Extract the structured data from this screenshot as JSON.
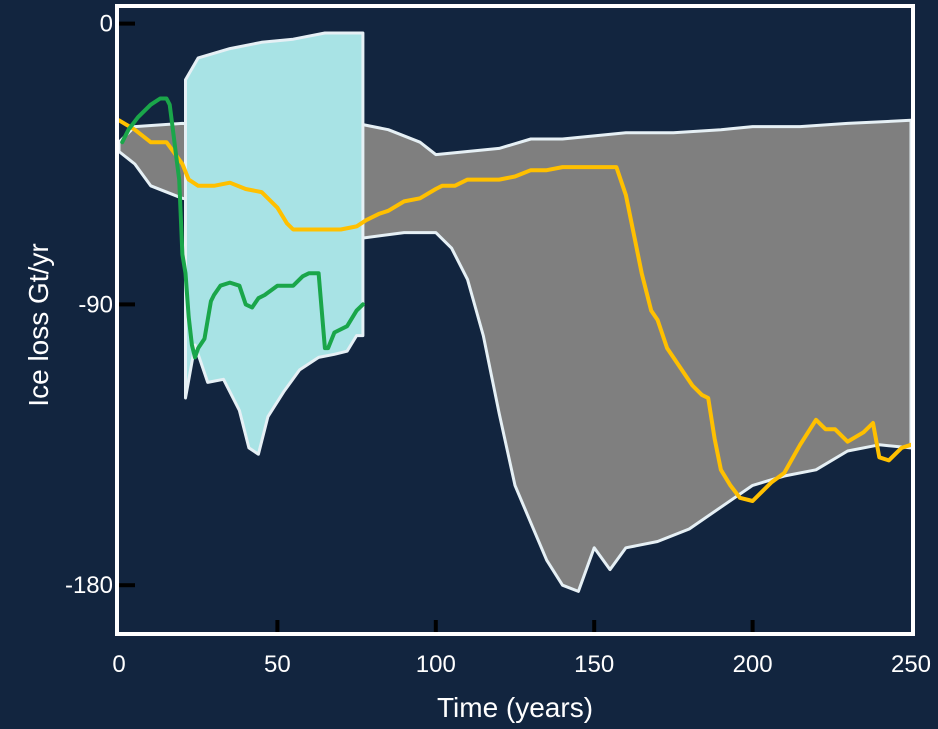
{
  "chart_data": {
    "type": "area",
    "xlabel": "Time (years)",
    "ylabel": "Ice loss Gt/yr",
    "xlim": [
      0,
      250
    ],
    "ylim": [
      -195,
      5
    ],
    "x_ticks": [
      0,
      50,
      100,
      150,
      200,
      250
    ],
    "y_ticks": [
      0,
      -90,
      -180
    ],
    "grid": false,
    "colors": {
      "background": "#12253f",
      "frame": "#ffffff",
      "gray_band": "#7f7f7f",
      "cyan_band": "#a8e3e5",
      "orange_line": "#ffc000",
      "green_line": "#1aa64a"
    },
    "bands": [
      {
        "color": "gray",
        "upper": [
          [
            0,
            -38
          ],
          [
            5,
            -33
          ],
          [
            20,
            -32
          ],
          [
            40,
            -34
          ],
          [
            60,
            -33
          ],
          [
            75,
            -32
          ],
          [
            85,
            -34
          ],
          [
            95,
            -38
          ],
          [
            100,
            -42
          ],
          [
            110,
            -41
          ],
          [
            120,
            -40
          ],
          [
            130,
            -37
          ],
          [
            140,
            -37
          ],
          [
            150,
            -36
          ],
          [
            160,
            -35
          ],
          [
            175,
            -35
          ],
          [
            190,
            -34
          ],
          [
            200,
            -33
          ],
          [
            215,
            -33
          ],
          [
            230,
            -32
          ],
          [
            250,
            -31
          ]
        ],
        "lower": [
          [
            0,
            -41
          ],
          [
            5,
            -45
          ],
          [
            10,
            -52
          ],
          [
            20,
            -56
          ],
          [
            40,
            -60
          ],
          [
            60,
            -66
          ],
          [
            75,
            -69
          ],
          [
            90,
            -67
          ],
          [
            100,
            -67
          ],
          [
            105,
            -72
          ],
          [
            110,
            -82
          ],
          [
            115,
            -100
          ],
          [
            120,
            -125
          ],
          [
            125,
            -148
          ],
          [
            130,
            -160
          ],
          [
            135,
            -172
          ],
          [
            140,
            -180
          ],
          [
            145,
            -182
          ],
          [
            150,
            -168
          ],
          [
            155,
            -175
          ],
          [
            160,
            -168
          ],
          [
            170,
            -166
          ],
          [
            180,
            -162
          ],
          [
            190,
            -155
          ],
          [
            200,
            -148
          ],
          [
            210,
            -145
          ],
          [
            220,
            -143
          ],
          [
            230,
            -137
          ],
          [
            240,
            -135
          ],
          [
            250,
            -136
          ]
        ]
      },
      {
        "color": "cyan",
        "upper": [
          [
            21,
            -18
          ],
          [
            25,
            -11
          ],
          [
            35,
            -8
          ],
          [
            45,
            -6
          ],
          [
            55,
            -5
          ],
          [
            65,
            -3
          ],
          [
            77,
            -3
          ]
        ],
        "lower": [
          [
            21,
            -120
          ],
          [
            24,
            -103
          ],
          [
            28,
            -115
          ],
          [
            33,
            -114
          ],
          [
            38,
            -124
          ],
          [
            41,
            -136
          ],
          [
            44,
            -138
          ],
          [
            47,
            -126
          ],
          [
            52,
            -118
          ],
          [
            57,
            -111
          ],
          [
            63,
            -107
          ],
          [
            68,
            -106
          ],
          [
            72,
            -105
          ],
          [
            75,
            -100
          ],
          [
            77,
            -100
          ]
        ]
      }
    ],
    "series": [
      {
        "color": "orange",
        "x": [
          0,
          5,
          10,
          15,
          20,
          22,
          25,
          30,
          35,
          40,
          45,
          50,
          53,
          55,
          60,
          65,
          70,
          75,
          78,
          82,
          85,
          90,
          95,
          100,
          102,
          106,
          110,
          115,
          120,
          125,
          130,
          135,
          140,
          145,
          150,
          155,
          157,
          160,
          163,
          165,
          168,
          170,
          173,
          177,
          181,
          184,
          186,
          188,
          190,
          193,
          196,
          200,
          203,
          206,
          210,
          215,
          220,
          223,
          226,
          230,
          235,
          238,
          240,
          243,
          247,
          250
        ],
        "y": [
          -31,
          -34,
          -38,
          -38,
          -45,
          -50,
          -52,
          -52,
          -51,
          -53,
          -54,
          -59,
          -64,
          -66,
          -66,
          -66,
          -66,
          -65,
          -63,
          -61,
          -60,
          -57,
          -56,
          -53,
          -52,
          -52,
          -50,
          -50,
          -50,
          -49,
          -47,
          -47,
          -46,
          -46,
          -46,
          -46,
          -46,
          -55,
          -70,
          -80,
          -92,
          -95,
          -104,
          -110,
          -116,
          -119,
          -120,
          -133,
          -143,
          -148,
          -152,
          -153,
          -150,
          -147,
          -144,
          -135,
          -127,
          -130,
          -130,
          -134,
          -131,
          -128,
          -139,
          -140,
          -136,
          -135
        ]
      },
      {
        "color": "green",
        "x": [
          1,
          3,
          6,
          10,
          13,
          15,
          16,
          17,
          18,
          19,
          20,
          21,
          22,
          23,
          24,
          25,
          27,
          29,
          30,
          32,
          35,
          38,
          40,
          42,
          44,
          46,
          50,
          55,
          58,
          60,
          63,
          65,
          66,
          68,
          72,
          75,
          77
        ],
        "y": [
          -38,
          -34,
          -30,
          -26,
          -24,
          -24,
          -26,
          -34,
          -42,
          -50,
          -74,
          -80,
          -94,
          -103,
          -107,
          -104,
          -101,
          -89,
          -87,
          -84,
          -83,
          -84,
          -90,
          -91,
          -88,
          -87,
          -84,
          -84,
          -81,
          -80,
          -80,
          -104,
          -104,
          -99,
          -97,
          -92,
          -90
        ]
      }
    ]
  }
}
